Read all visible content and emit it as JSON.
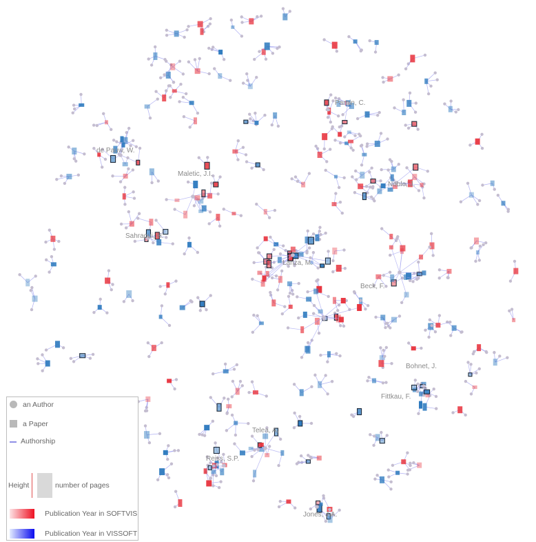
{
  "colors": {
    "softvis": "#e8323c",
    "vissoft": "#2f7bbf",
    "author": "#c4bdd0",
    "link": "#9c9cf0",
    "label": "#8a8a8a"
  },
  "author_labels": [
    {
      "id": "parnin",
      "text": "Parnin, C."
    },
    {
      "id": "depauw",
      "text": "de Pauw, W."
    },
    {
      "id": "maletic",
      "text": "Maletic, J.I."
    },
    {
      "id": "noble",
      "text": "Noble, J."
    },
    {
      "id": "sahraoui",
      "text": "Sahraoui, H."
    },
    {
      "id": "lanza",
      "text": "Lanza, M."
    },
    {
      "id": "beck",
      "text": "Beck, F."
    },
    {
      "id": "bohnet",
      "text": "Bohnet, J."
    },
    {
      "id": "fittkau",
      "text": "Fittkau, F."
    },
    {
      "id": "telea",
      "text": "Telea, A."
    },
    {
      "id": "reiss",
      "text": "Reiss, S.P."
    },
    {
      "id": "jones",
      "text": "Jones, J.A."
    }
  ],
  "legend": {
    "author": "an Author",
    "paper": "a Paper",
    "authorship": "Authorship",
    "height": "Height",
    "pages": "number of pages",
    "softvis": "Publication Year in SOFTVIS",
    "vissoft": "Publication Year in VISSOFT"
  }
}
